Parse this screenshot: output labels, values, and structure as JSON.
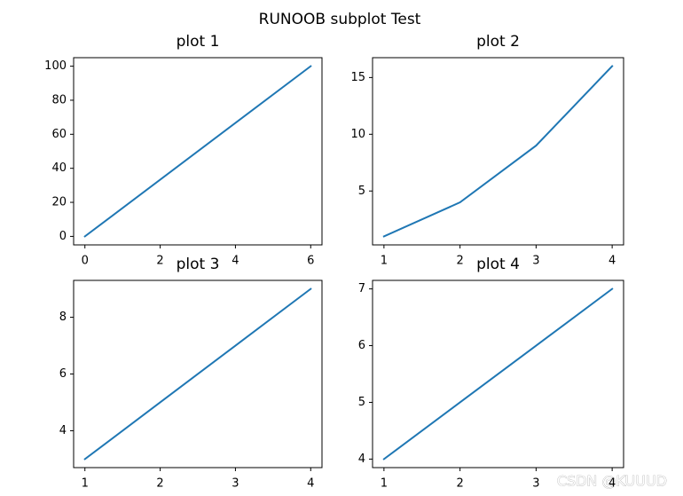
{
  "title": "RUNOOB subplot Test",
  "watermark": "CSDN @KUUUD",
  "chart_data": [
    {
      "type": "line",
      "title": "plot 1",
      "x": [
        0,
        6
      ],
      "values": [
        0,
        100
      ],
      "color": "#1f77b4",
      "xlim": [
        -0.3,
        6.3
      ],
      "ylim": [
        -5,
        105
      ],
      "xticks": [
        0,
        2,
        4,
        6
      ],
      "yticks": [
        0,
        20,
        40,
        60,
        80,
        100
      ]
    },
    {
      "type": "line",
      "title": "plot 2",
      "x": [
        1,
        2,
        3,
        4
      ],
      "values": [
        1,
        4,
        9,
        16
      ],
      "color": "#1f77b4",
      "xlim": [
        0.85,
        4.15
      ],
      "ylim": [
        0.25,
        16.75
      ],
      "xticks": [
        1,
        2,
        3,
        4
      ],
      "yticks": [
        5,
        10,
        15
      ]
    },
    {
      "type": "line",
      "title": "plot 3",
      "x": [
        1,
        2,
        3,
        4
      ],
      "values": [
        3,
        5,
        7,
        9
      ],
      "color": "#1f77b4",
      "xlim": [
        0.85,
        4.15
      ],
      "ylim": [
        2.7,
        9.3
      ],
      "xticks": [
        1,
        2,
        3,
        4
      ],
      "yticks": [
        4,
        6,
        8
      ]
    },
    {
      "type": "line",
      "title": "plot 4",
      "x": [
        1,
        2,
        3,
        4
      ],
      "values": [
        4,
        5,
        6,
        7
      ],
      "color": "#1f77b4",
      "xlim": [
        0.85,
        4.15
      ],
      "ylim": [
        3.85,
        7.15
      ],
      "xticks": [
        1,
        2,
        3,
        4
      ],
      "yticks": [
        4,
        5,
        6,
        7
      ]
    }
  ]
}
